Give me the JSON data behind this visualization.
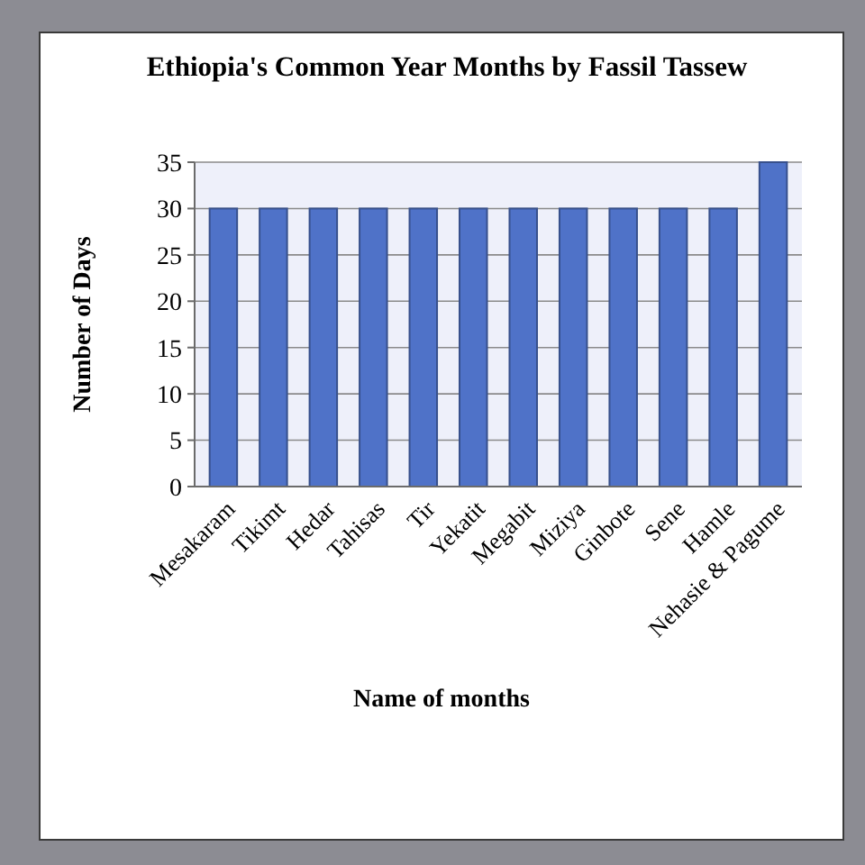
{
  "chart_data": {
    "type": "bar",
    "title": "Ethiopia's Common Year Months by Fassil Tassew",
    "xlabel": "Name of months",
    "ylabel": "Number of Days",
    "categories": [
      "Mesakaram",
      "Tikimt",
      "Hedar",
      "Tahisas",
      "Tir",
      "Yekatit",
      "Megabit",
      "Miziya",
      "Ginbote",
      "Sene",
      "Hamle",
      "Nehasie & Pagume"
    ],
    "values": [
      30,
      30,
      30,
      30,
      30,
      30,
      30,
      30,
      30,
      30,
      30,
      35
    ],
    "color": "#4f72c8",
    "ylim": [
      0,
      35
    ],
    "yticks": [
      0,
      5,
      10,
      15,
      20,
      25,
      30,
      35
    ],
    "grid": "y"
  }
}
